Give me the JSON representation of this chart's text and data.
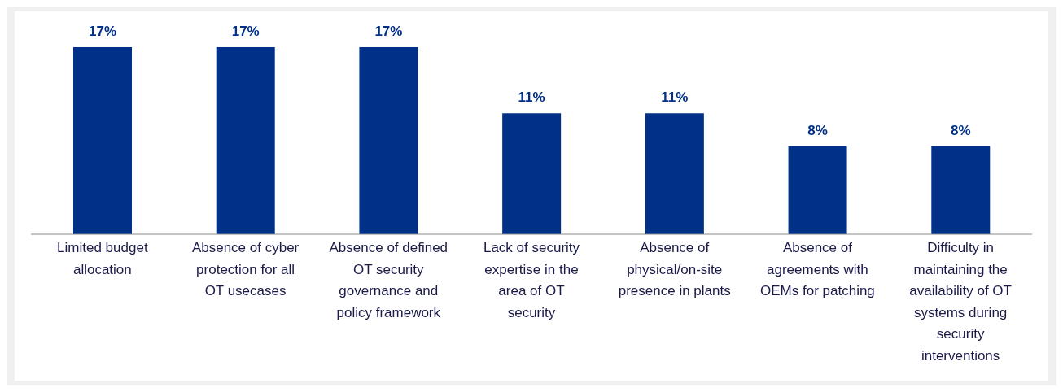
{
  "chart_data": {
    "type": "bar",
    "categories": [
      "Limited budget allocation",
      "Absence of cyber protection for all OT usecases",
      "Absence of defined OT security governance and policy framework",
      "Lack of security expertise in the area of OT security",
      "Absence of physical/on-site presence in plants",
      "Absence of agreements with OEMs for patching",
      "Difficulty in maintaining the availability of OT systems during security interventions"
    ],
    "values": [
      17,
      17,
      17,
      11,
      11,
      8,
      8
    ],
    "value_labels": [
      "17%",
      "17%",
      "17%",
      "11%",
      "11%",
      "8%",
      "8%"
    ],
    "color": "#003087",
    "grid": false,
    "legend": false
  }
}
